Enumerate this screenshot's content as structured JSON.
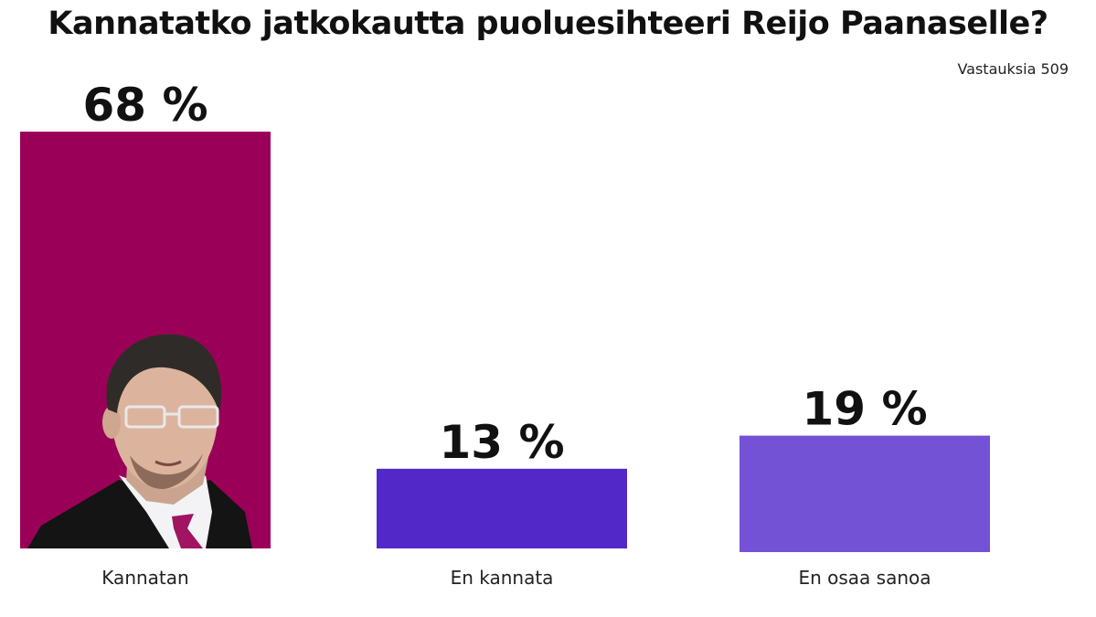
{
  "title": "Kannatatko jatkokautta puoluesihteeri Reijo Paanaselle?",
  "note": "Vastauksia 509",
  "chart_data": {
    "type": "bar",
    "title": "Kannatatko jatkokautta puoluesihteeri Reijo Paanaselle?",
    "categories": [
      "Kannatan",
      "En kannata",
      "En osaa sanoa"
    ],
    "values": [
      68,
      13,
      19
    ],
    "value_labels": [
      "68 %",
      "13 %",
      "19 %"
    ],
    "unit": "%",
    "colors": [
      "#9B0058",
      "#5228C8",
      "#7452D6"
    ],
    "ylim": [
      0,
      68
    ],
    "grid": false,
    "legend": "none",
    "annotations": [
      "portrait illustration inside the 'Kannatan' bar"
    ]
  }
}
